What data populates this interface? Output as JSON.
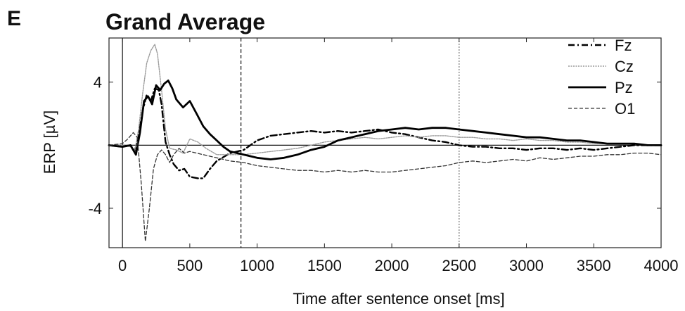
{
  "panel_label": "E",
  "chart_data": {
    "type": "line",
    "title": "Grand Average",
    "xlabel": "Time after sentence onset [ms]",
    "ylabel": "ERP [µV]",
    "xlim": [
      -100,
      4000
    ],
    "ylim": [
      -6.5,
      6.8
    ],
    "xticks": [
      0,
      500,
      1000,
      1500,
      2000,
      2500,
      3000,
      3500,
      4000
    ],
    "xtick_labels": [
      "0",
      "500",
      "1000",
      "1500",
      "2000",
      "2500",
      "3000",
      "3500",
      "4000"
    ],
    "yticks": [
      -4,
      4
    ],
    "ytick_labels": [
      "-4",
      "4"
    ],
    "grid": false,
    "legend_position": "top-right",
    "reference_lines": {
      "zero_y": 0,
      "vertical_x": [
        0,
        880,
        2500
      ]
    },
    "series": [
      {
        "name": "Fz",
        "style": "dash-dot",
        "color": "#000000",
        "x": [
          -100,
          0,
          60,
          90,
          120,
          150,
          180,
          210,
          240,
          270,
          290,
          320,
          350,
          380,
          420,
          460,
          500,
          560,
          600,
          650,
          700,
          800,
          900,
          1000,
          1100,
          1200,
          1300,
          1400,
          1500,
          1600,
          1700,
          1800,
          1900,
          2000,
          2100,
          2200,
          2300,
          2400,
          2500,
          2600,
          2700,
          2800,
          2900,
          3000,
          3100,
          3200,
          3300,
          3400,
          3500,
          3600,
          3700,
          3800,
          3900,
          4000
        ],
        "y": [
          0.0,
          -0.1,
          0.0,
          -0.4,
          0.6,
          2.2,
          3.2,
          2.8,
          3.6,
          3.5,
          2.6,
          0.2,
          -0.6,
          -1.2,
          -1.6,
          -1.5,
          -2.0,
          -2.1,
          -2.1,
          -1.5,
          -1.0,
          -0.5,
          -0.3,
          0.3,
          0.6,
          0.7,
          0.8,
          0.9,
          0.8,
          0.9,
          0.8,
          0.9,
          1.0,
          0.8,
          0.7,
          0.5,
          0.3,
          0.2,
          0.0,
          -0.1,
          -0.1,
          -0.2,
          -0.2,
          -0.3,
          -0.2,
          -0.2,
          -0.3,
          -0.2,
          -0.3,
          -0.2,
          -0.1,
          0.0,
          0.0,
          0.0
        ]
      },
      {
        "name": "Cz",
        "style": "dotted",
        "color": "#9a9a9a",
        "x": [
          -100,
          0,
          60,
          90,
          120,
          150,
          180,
          210,
          240,
          260,
          290,
          320,
          350,
          400,
          450,
          500,
          560,
          620,
          700,
          800,
          900,
          1000,
          1100,
          1200,
          1300,
          1400,
          1500,
          1600,
          1700,
          1800,
          1900,
          2000,
          2100,
          2200,
          2300,
          2400,
          2500,
          2600,
          2700,
          2800,
          2900,
          3000,
          3100,
          3200,
          3300,
          3400,
          3500,
          3600,
          3700,
          3800,
          3900,
          4000
        ],
        "y": [
          0.0,
          0.0,
          -0.1,
          -0.4,
          1.0,
          3.3,
          5.2,
          6.0,
          6.4,
          5.8,
          3.5,
          1.0,
          -0.2,
          -0.3,
          -0.5,
          0.4,
          0.2,
          -0.2,
          -0.6,
          -0.6,
          -0.6,
          -0.5,
          -0.4,
          -0.3,
          -0.2,
          0.0,
          0.2,
          0.3,
          0.4,
          0.5,
          0.4,
          0.5,
          0.6,
          0.5,
          0.6,
          0.6,
          0.5,
          0.5,
          0.4,
          0.4,
          0.3,
          0.4,
          0.3,
          0.3,
          0.2,
          0.2,
          0.1,
          0.1,
          0.1,
          0.1,
          0.0,
          0.0
        ]
      },
      {
        "name": "Pz",
        "style": "solid-thick",
        "color": "#000000",
        "x": [
          -100,
          0,
          60,
          100,
          130,
          160,
          190,
          220,
          250,
          280,
          310,
          340,
          370,
          400,
          450,
          500,
          550,
          600,
          650,
          700,
          750,
          800,
          900,
          1000,
          1100,
          1200,
          1300,
          1400,
          1500,
          1600,
          1700,
          1800,
          1900,
          2000,
          2100,
          2200,
          2300,
          2400,
          2500,
          2600,
          2700,
          2800,
          2900,
          3000,
          3100,
          3200,
          3300,
          3400,
          3500,
          3600,
          3700,
          3800,
          3900,
          4000
        ],
        "y": [
          0.0,
          -0.1,
          0.0,
          -0.6,
          0.8,
          2.8,
          3.1,
          2.6,
          3.8,
          3.5,
          3.9,
          4.1,
          3.6,
          2.9,
          2.4,
          2.8,
          2.0,
          1.2,
          0.7,
          0.3,
          -0.1,
          -0.4,
          -0.6,
          -0.8,
          -0.9,
          -0.8,
          -0.6,
          -0.3,
          -0.1,
          0.3,
          0.5,
          0.7,
          0.9,
          1.0,
          1.1,
          1.0,
          1.1,
          1.1,
          1.0,
          0.9,
          0.8,
          0.7,
          0.6,
          0.5,
          0.5,
          0.4,
          0.3,
          0.3,
          0.2,
          0.1,
          0.1,
          0.1,
          0.0,
          0.0
        ]
      },
      {
        "name": "O1",
        "style": "dashed",
        "color": "#333333",
        "x": [
          -100,
          0,
          40,
          80,
          110,
          140,
          170,
          200,
          230,
          260,
          290,
          320,
          350,
          380,
          420,
          460,
          500,
          600,
          700,
          800,
          900,
          1000,
          1100,
          1200,
          1300,
          1400,
          1500,
          1600,
          1700,
          1800,
          1900,
          2000,
          2100,
          2200,
          2300,
          2400,
          2500,
          2600,
          2700,
          2800,
          2900,
          3000,
          3100,
          3200,
          3300,
          3400,
          3500,
          3600,
          3700,
          3800,
          3900,
          4000
        ],
        "y": [
          0.0,
          0.1,
          0.4,
          0.8,
          0.5,
          -2.5,
          -6.1,
          -4.0,
          -1.5,
          -0.6,
          -0.3,
          -0.6,
          -1.1,
          -0.6,
          -0.2,
          -0.5,
          -0.4,
          -0.6,
          -0.8,
          -1.0,
          -1.1,
          -1.3,
          -1.4,
          -1.5,
          -1.6,
          -1.6,
          -1.7,
          -1.6,
          -1.7,
          -1.6,
          -1.7,
          -1.7,
          -1.6,
          -1.5,
          -1.4,
          -1.3,
          -1.1,
          -1.0,
          -1.1,
          -1.0,
          -0.9,
          -1.0,
          -0.8,
          -0.9,
          -0.8,
          -0.7,
          -0.7,
          -0.6,
          -0.6,
          -0.5,
          -0.5,
          -0.6
        ]
      }
    ]
  }
}
